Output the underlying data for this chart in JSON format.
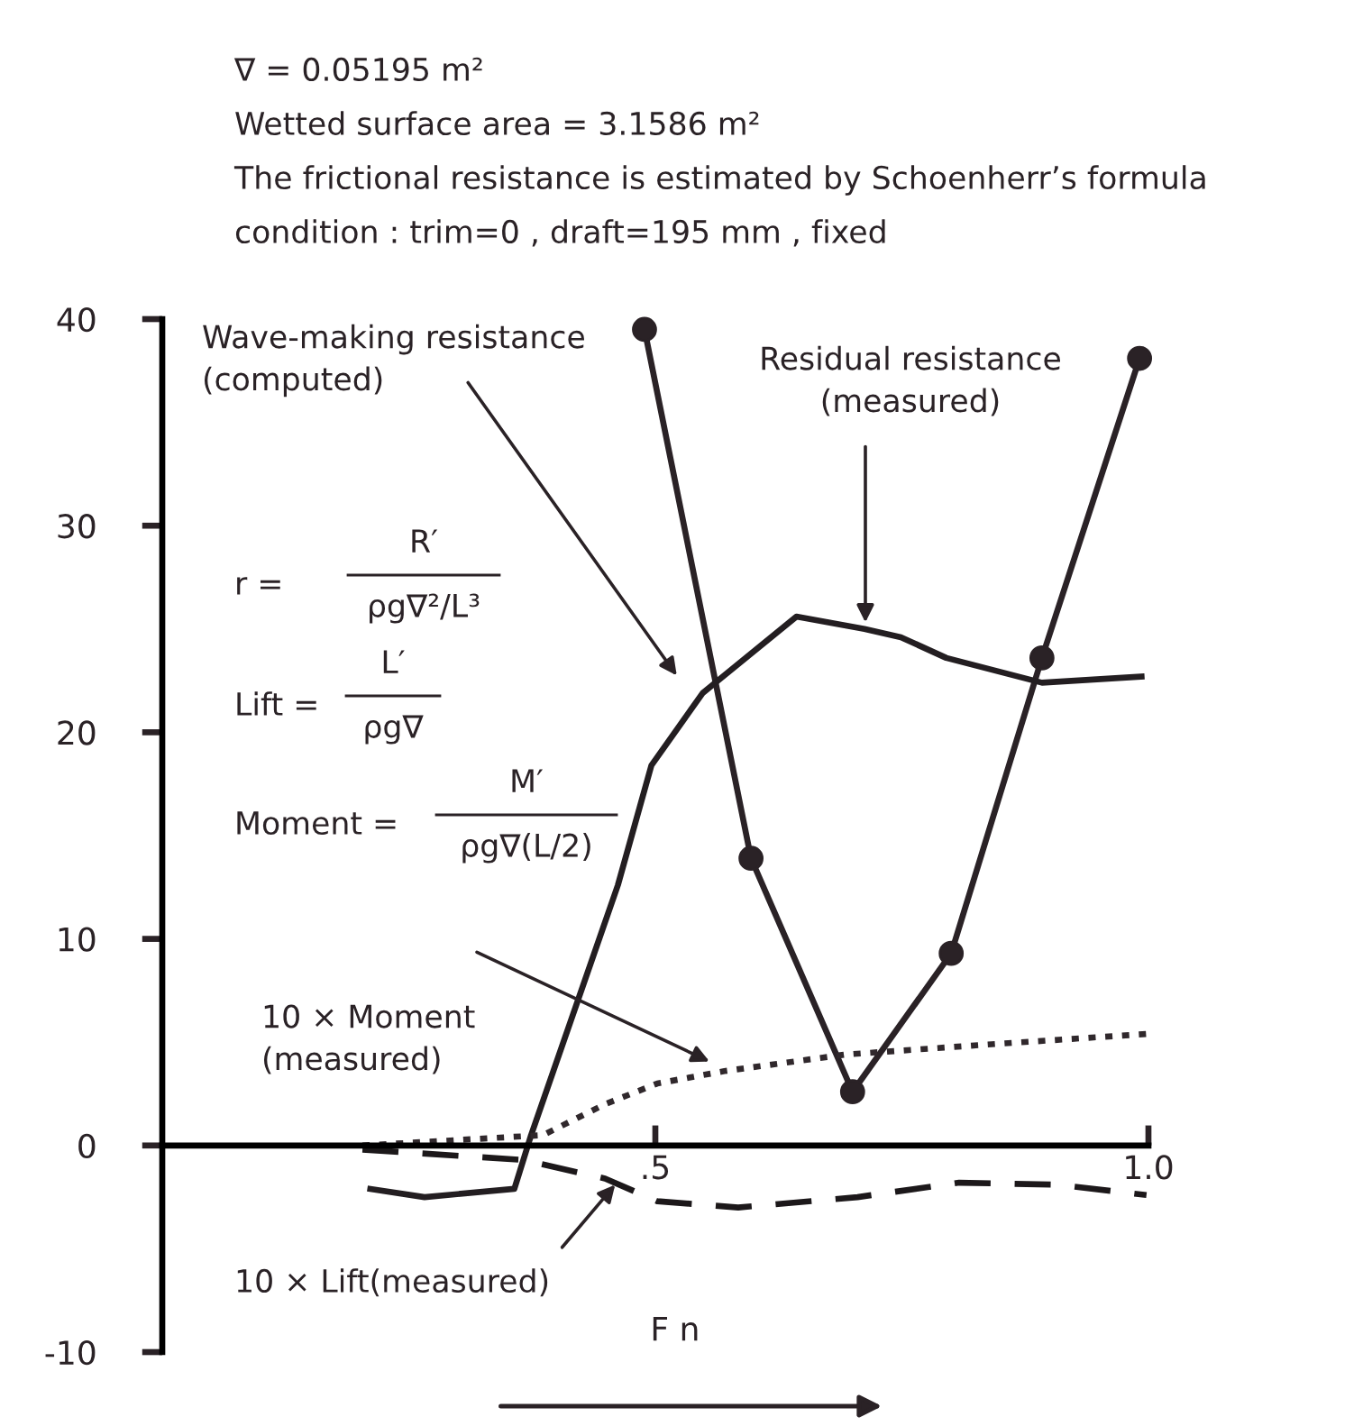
{
  "chart_data": {
    "type": "line",
    "xlabel": "F n",
    "xlim": [
      0,
      1.0
    ],
    "ylim": [
      -10,
      40
    ],
    "xticks": [
      {
        "value": 0.5,
        "label": ".5"
      },
      {
        "value": 1.0,
        "label": "1.0"
      }
    ],
    "yticks": [
      -10,
      0,
      10,
      20,
      30,
      40
    ],
    "grid": false,
    "legend": false,
    "series": [
      {
        "color": "#2a2226",
        "marker": "circle",
        "line_style": "solid",
        "x": [
          0.489,
          0.597,
          0.7,
          0.8,
          0.892,
          0.991
        ],
        "values": [
          39.5,
          13.9,
          2.6,
          9.3,
          23.6,
          38.1
        ]
      },
      {
        "color": "#231e21",
        "marker": "none",
        "line_style": "solid",
        "x": [
          0.211,
          0.266,
          0.357,
          0.374,
          0.462,
          0.496,
          0.548,
          0.643,
          0.712,
          0.749,
          0.795,
          0.892,
          0.993
        ],
        "values": [
          -2.1,
          -2.5,
          -2.1,
          0.5,
          12.6,
          18.4,
          21.9,
          25.6,
          25.0,
          24.6,
          23.6,
          22.4,
          22.7
        ]
      },
      {
        "color": "#30282c",
        "marker": "none",
        "line_style": "dotted",
        "x": [
          0.203,
          0.386,
          0.449,
          0.502,
          0.57,
          0.692,
          0.841,
          0.998
        ],
        "values": [
          0,
          0.5,
          2.0,
          3.0,
          3.6,
          4.4,
          4.9,
          5.4
        ]
      },
      {
        "color": "#1c181a",
        "marker": "none",
        "line_style": "dashed",
        "x": [
          0.203,
          0.366,
          0.449,
          0.502,
          0.584,
          0.705,
          0.808,
          0.908,
          0.998
        ],
        "values": [
          -0.2,
          -0.7,
          -1.6,
          -2.7,
          -3.0,
          -2.5,
          -1.8,
          -1.9,
          -2.4
        ]
      }
    ],
    "annotations": [
      "∇ = 0.05195 m²",
      "Wetted surface area = 3.1586 m²",
      "The frictional resistance is estimated by Schoenherr’s formula",
      "condition : trim=0 , draft=195 mm , fixed",
      "Wave-making resistance\n(computed)",
      "Residual resistance\n(measured)",
      "10 × Moment\n(measured)",
      "10 × Lift(measured)",
      "r =",
      "R′",
      "ρg∇²/L³",
      "Lift =",
      "L′",
      "ρg∇",
      "Moment =",
      "M′",
      "ρg∇(L/2)"
    ]
  }
}
